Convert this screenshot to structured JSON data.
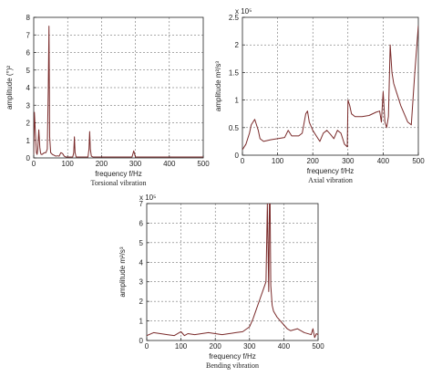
{
  "figure": {
    "line_color": "#7a2a2a"
  },
  "chart_data": [
    {
      "id": "torsional",
      "type": "line",
      "caption": "Torsional vibration",
      "xlabel": "frequency  f/Hz",
      "ylabel": "amplitude  (°)²",
      "xlim": [
        0,
        500
      ],
      "ylim": [
        0,
        8
      ],
      "xticks": [
        0,
        100,
        200,
        300,
        400,
        500
      ],
      "yticks": [
        0,
        1,
        2,
        3,
        4,
        5,
        6,
        7,
        8
      ],
      "exponent": "",
      "grid": true,
      "x": [
        0,
        2,
        5,
        8,
        10,
        12,
        15,
        18,
        20,
        22,
        25,
        28,
        32,
        36,
        40,
        43,
        45,
        47,
        50,
        55,
        60,
        65,
        70,
        75,
        80,
        85,
        90,
        95,
        100,
        105,
        110,
        115,
        118,
        120,
        122,
        125,
        130,
        140,
        150,
        160,
        163,
        165,
        167,
        170,
        175,
        180,
        190,
        200,
        220,
        240,
        260,
        280,
        290,
        295,
        300,
        310,
        320,
        340,
        360,
        380,
        400,
        420,
        440,
        460,
        480,
        500
      ],
      "y": [
        0.2,
        2.6,
        1.4,
        0.3,
        0.2,
        0.5,
        1.6,
        0.6,
        0.3,
        0.2,
        0.2,
        0.25,
        0.3,
        0.3,
        0.5,
        4.0,
        7.5,
        1.2,
        0.3,
        0.2,
        0.15,
        0.1,
        0.12,
        0.1,
        0.3,
        0.25,
        0.1,
        0.05,
        0.05,
        0.05,
        0.05,
        0.05,
        0.3,
        1.2,
        0.3,
        0.05,
        0.05,
        0.05,
        0.05,
        0.05,
        0.5,
        1.5,
        0.5,
        0.1,
        0.05,
        0.05,
        0.05,
        0.05,
        0.05,
        0.05,
        0.05,
        0.05,
        0.05,
        0.4,
        0.05,
        0.05,
        0.05,
        0.05,
        0.05,
        0.05,
        0.05,
        0.05,
        0.05,
        0.05,
        0.05,
        0.05
      ]
    },
    {
      "id": "axial",
      "type": "line",
      "caption": "Axial vibration",
      "xlabel": "frequency  f/Hz",
      "ylabel": "amplitude  m²/s³",
      "xlim": [
        0,
        500
      ],
      "ylim": [
        0,
        2.5
      ],
      "xticks": [
        0,
        100,
        200,
        300,
        400,
        500
      ],
      "yticks": [
        0,
        0.5,
        1,
        1.5,
        2,
        2.5
      ],
      "exponent": "x 10⁵",
      "grid": true,
      "x": [
        0,
        5,
        10,
        15,
        20,
        25,
        30,
        35,
        40,
        45,
        50,
        60,
        80,
        100,
        120,
        130,
        135,
        140,
        150,
        160,
        170,
        180,
        185,
        190,
        200,
        210,
        220,
        230,
        240,
        250,
        260,
        270,
        280,
        290,
        298,
        300,
        305,
        310,
        320,
        340,
        360,
        380,
        390,
        395,
        400,
        405,
        410,
        415,
        420,
        425,
        430,
        440,
        450,
        460,
        470,
        480,
        490,
        500
      ],
      "y": [
        0.1,
        0.15,
        0.2,
        0.3,
        0.4,
        0.55,
        0.6,
        0.65,
        0.55,
        0.45,
        0.3,
        0.25,
        0.28,
        0.3,
        0.32,
        0.45,
        0.4,
        0.35,
        0.35,
        0.35,
        0.4,
        0.75,
        0.8,
        0.6,
        0.45,
        0.35,
        0.25,
        0.4,
        0.45,
        0.38,
        0.3,
        0.45,
        0.4,
        0.2,
        0.15,
        1.0,
        0.9,
        0.75,
        0.7,
        0.7,
        0.72,
        0.78,
        0.8,
        0.6,
        1.15,
        0.6,
        0.5,
        0.7,
        2.0,
        1.5,
        1.3,
        1.1,
        0.9,
        0.75,
        0.6,
        0.55,
        1.5,
        2.35
      ]
    },
    {
      "id": "bending",
      "type": "line",
      "caption": "Bending vibration",
      "xlabel": "frequency  f/Hz",
      "ylabel": "amplitude  m²/s³",
      "xlim": [
        0,
        500
      ],
      "ylim": [
        0,
        7
      ],
      "xticks": [
        0,
        100,
        200,
        300,
        400,
        500
      ],
      "yticks": [
        0,
        1,
        2,
        3,
        4,
        5,
        6,
        7
      ],
      "exponent": "x 10⁵",
      "grid": true,
      "x": [
        0,
        20,
        40,
        60,
        80,
        100,
        110,
        120,
        140,
        160,
        180,
        200,
        220,
        240,
        260,
        280,
        300,
        310,
        320,
        330,
        340,
        348,
        352,
        356,
        358,
        360,
        362,
        366,
        370,
        380,
        390,
        400,
        410,
        420,
        440,
        460,
        480,
        485,
        490,
        495,
        500
      ],
      "y": [
        0.25,
        0.4,
        0.35,
        0.3,
        0.25,
        0.45,
        0.25,
        0.35,
        0.3,
        0.35,
        0.4,
        0.35,
        0.3,
        0.35,
        0.4,
        0.45,
        0.7,
        1.1,
        1.6,
        2.1,
        2.6,
        3.0,
        7.0,
        2.5,
        7.0,
        7.0,
        2.8,
        1.8,
        1.5,
        1.2,
        1.0,
        0.8,
        0.6,
        0.5,
        0.6,
        0.4,
        0.3,
        0.6,
        0.15,
        0.35,
        0.3
      ]
    }
  ]
}
